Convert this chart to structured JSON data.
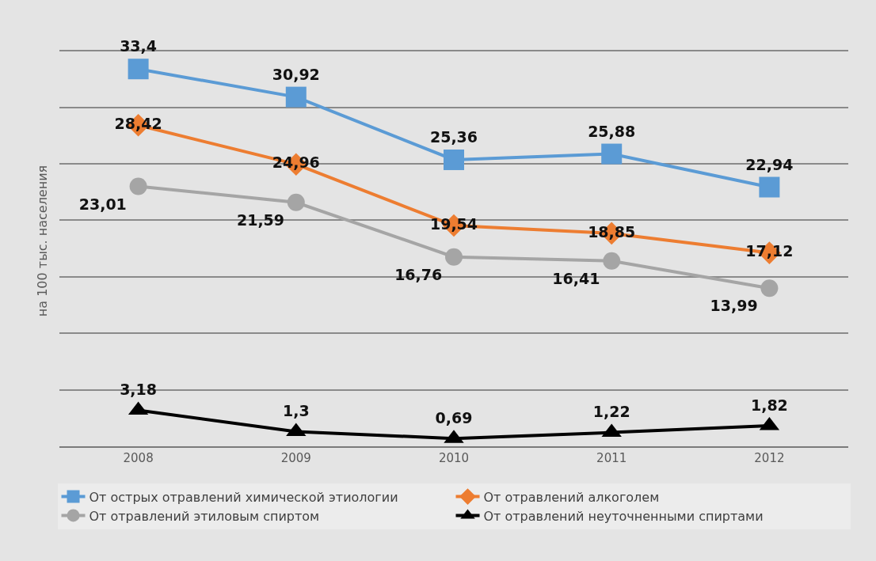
{
  "chart_data": {
    "type": "line",
    "ylabel": "на 100 тыс. населения",
    "categories": [
      "2008",
      "2009",
      "2010",
      "2011",
      "2012"
    ],
    "series": [
      {
        "name": "От острых отравлений химической этиологии",
        "color": "#5b9bd5",
        "marker": "square",
        "values": [
          33.4,
          30.92,
          25.36,
          25.88,
          22.94
        ],
        "value_labels": [
          "33,4",
          "30,92",
          "25,36",
          "25,88",
          "22,94"
        ]
      },
      {
        "name": "От отравлений алкоголем",
        "color": "#ed7d31",
        "marker": "diamond",
        "values": [
          28.42,
          24.96,
          19.54,
          18.85,
          17.12
        ],
        "value_labels": [
          "28,42",
          "24,96",
          "19,54",
          "18,85",
          "17,12"
        ]
      },
      {
        "name": "От отравлений этиловым спиртом",
        "color": "#a5a5a5",
        "marker": "circle",
        "values": [
          23.01,
          21.59,
          16.76,
          16.41,
          13.99
        ],
        "value_labels": [
          "23,01",
          "21,59",
          "16,76",
          "16,41",
          "13,99"
        ]
      },
      {
        "name": "От отравлений неуточненными спиртами",
        "color": "#000000",
        "marker": "triangle",
        "values": [
          3.18,
          1.3,
          0.69,
          1.22,
          1.82
        ],
        "value_labels": [
          "3,18",
          "1,3",
          "0,69",
          "1,22",
          "1,82"
        ]
      }
    ],
    "grid": "y",
    "legend": "bottom",
    "tick_labels": "x",
    "line_style": "solid"
  }
}
